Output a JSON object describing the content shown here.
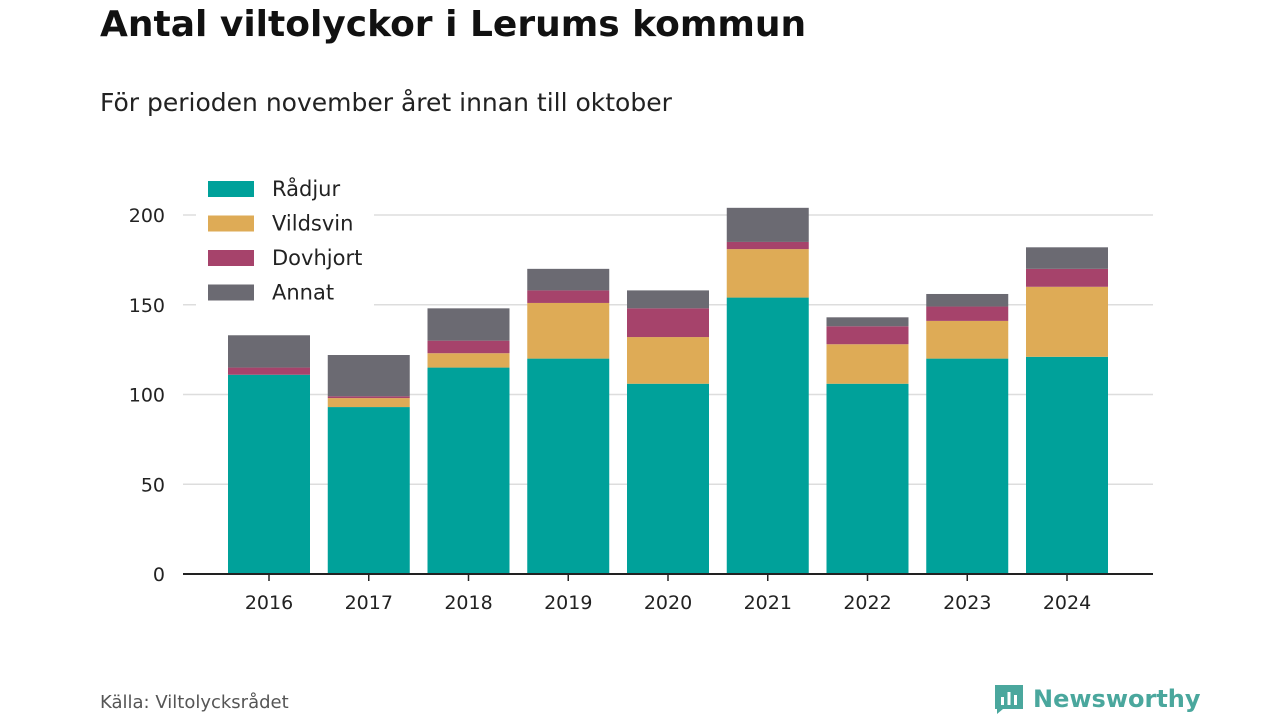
{
  "title": "Antal viltolyckor i Lerums kommun",
  "subtitle": "För perioden november året innan till oktober",
  "source": "Källa: Viltolycksrådet",
  "brand": "Newsworthy",
  "colors": {
    "Rådjur": "#00a19a",
    "Vildsvin": "#deab56",
    "Dovhjort": "#a6436b",
    "Annat": "#6b6a72",
    "grid": "#dddddd",
    "axis": "#222222",
    "brand": "#4aa79d"
  },
  "chart_data": {
    "type": "bar",
    "stacked": true,
    "categories": [
      "2016",
      "2017",
      "2018",
      "2019",
      "2020",
      "2021",
      "2022",
      "2023",
      "2024"
    ],
    "series": [
      {
        "name": "Rådjur",
        "values": [
          111,
          93,
          115,
          120,
          106,
          154,
          106,
          120,
          121
        ]
      },
      {
        "name": "Vildsvin",
        "values": [
          0,
          5,
          8,
          31,
          26,
          27,
          22,
          21,
          39
        ]
      },
      {
        "name": "Dovhjort",
        "values": [
          4,
          1,
          7,
          7,
          16,
          4,
          10,
          8,
          10
        ]
      },
      {
        "name": "Annat",
        "values": [
          18,
          23,
          18,
          12,
          10,
          19,
          5,
          7,
          12
        ]
      }
    ],
    "ylim": [
      0,
      200
    ],
    "yticks": [
      0,
      50,
      100,
      150,
      200
    ],
    "grid": true,
    "legend_position": "top-left"
  }
}
